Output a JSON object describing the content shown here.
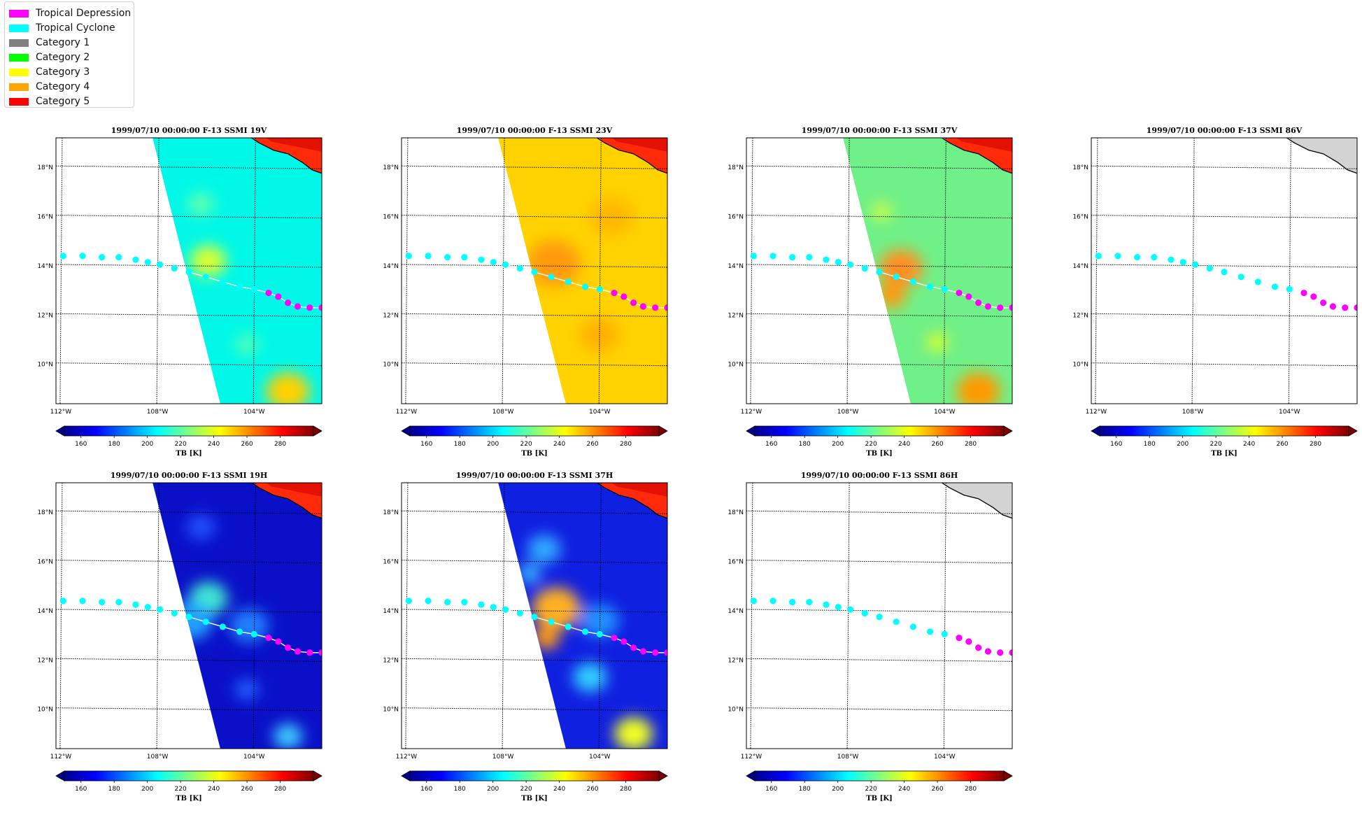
{
  "legend": [
    {
      "label": "Tropical Depression",
      "color": "#ff00ff"
    },
    {
      "label": "Tropical Cyclone",
      "color": "#00ffff"
    },
    {
      "label": "Category 1",
      "color": "#808080"
    },
    {
      "label": "Category 2",
      "color": "#00ff00"
    },
    {
      "label": "Category 3",
      "color": "#ffff00"
    },
    {
      "label": "Category 4",
      "color": "#ffa500"
    },
    {
      "label": "Category 5",
      "color": "#ff0000"
    }
  ],
  "lat_labels": [
    "18°N",
    "16°N",
    "14°N",
    "12°N",
    "10°N"
  ],
  "lon_labels": [
    "112°W",
    "108°W",
    "104°W"
  ],
  "colorbar": {
    "ticks": [
      "160",
      "180",
      "200",
      "220",
      "240",
      "260",
      "280"
    ],
    "label": "TB [K]",
    "colors": [
      "#00008f",
      "#0000ff",
      "#0080ff",
      "#00ffff",
      "#80ff80",
      "#ffff00",
      "#ff8000",
      "#ff0000",
      "#800000"
    ]
  },
  "track": {
    "points": [
      [
        -111.9,
        14.4
      ],
      [
        -111.1,
        14.4
      ],
      [
        -110.3,
        14.35
      ],
      [
        -109.6,
        14.35
      ],
      [
        -108.9,
        14.25
      ],
      [
        -108.4,
        14.15
      ],
      [
        -107.9,
        14.05
      ],
      [
        -107.3,
        13.9
      ],
      [
        -106.7,
        13.75
      ],
      [
        -106.0,
        13.55
      ],
      [
        -105.3,
        13.35
      ],
      [
        -104.6,
        13.15
      ],
      [
        -104.0,
        13.05
      ],
      [
        -103.4,
        12.9
      ],
      [
        -103.0,
        12.75
      ],
      [
        -102.6,
        12.5
      ],
      [
        -102.2,
        12.35
      ],
      [
        -101.7,
        12.3
      ],
      [
        -101.2,
        12.3
      ]
    ],
    "categories": [
      "TC",
      "TC",
      "TC",
      "TC",
      "TC",
      "TC",
      "TC",
      "TC",
      "TC",
      "TC",
      "TC",
      "TC",
      "TC",
      "TD",
      "TD",
      "TD",
      "TD",
      "TD",
      "TD"
    ]
  },
  "panels": [
    {
      "title": "1999/07/10 00:00:00  F-13 SSMI 19V",
      "channel": "19V",
      "base": "#00f8e8",
      "colorbar": true,
      "blobs": [
        {
          "lon": -105.9,
          "lat": 14.2,
          "color": "#d8ff30",
          "r": 0.75
        },
        {
          "lon": -102.6,
          "lat": 8.9,
          "color": "#ffd000",
          "r": 0.9
        },
        {
          "lon": -106.2,
          "lat": 16.5,
          "color": "#60ffb0",
          "r": 0.55
        },
        {
          "lon": -104.3,
          "lat": 10.8,
          "color": "#50ffb8",
          "r": 0.5
        }
      ]
    },
    {
      "title": "1999/07/10 00:00:00  F-13 SSMI 23V",
      "channel": "23V",
      "base": "#ffd200",
      "colorbar": true,
      "blobs": [
        {
          "lon": -105.9,
          "lat": 14.1,
          "color": "#ff9a10",
          "r": 1.1
        },
        {
          "lon": -104.0,
          "lat": 11.2,
          "color": "#ffb000",
          "r": 0.8
        },
        {
          "lon": -103.5,
          "lat": 16.0,
          "color": "#ffb800",
          "r": 0.9
        }
      ]
    },
    {
      "title": "1999/07/10 00:00:00  F-13 SSMI 37V",
      "channel": "37V",
      "base": "#70f088",
      "colorbar": true,
      "blobs": [
        {
          "lon": -105.8,
          "lat": 13.9,
          "color": "#ff9020",
          "r": 0.9
        },
        {
          "lon": -106.2,
          "lat": 12.8,
          "color": "#ff9a10",
          "r": 0.6
        },
        {
          "lon": -102.6,
          "lat": 8.9,
          "color": "#ff9a00",
          "r": 0.9
        },
        {
          "lon": -104.3,
          "lat": 10.9,
          "color": "#d8ff30",
          "r": 0.45
        },
        {
          "lon": -106.6,
          "lat": 16.2,
          "color": "#d8ff40",
          "r": 0.4
        }
      ]
    },
    {
      "title": "1999/07/10 00:00:00  F-13 SSMI 86V",
      "channel": "86V",
      "base": "",
      "colorbar": true,
      "blobs": []
    },
    {
      "title": "1999/07/10 00:00:00  F-13 SSMI 19H",
      "channel": "19H",
      "base": "#0a10c8",
      "colorbar": true,
      "blobs": [
        {
          "lon": -105.9,
          "lat": 14.5,
          "color": "#40e8d0",
          "r": 0.8
        },
        {
          "lon": -106.6,
          "lat": 13.6,
          "color": "#20a0ff",
          "r": 0.9
        },
        {
          "lon": -104.2,
          "lat": 13.4,
          "color": "#2080ff",
          "r": 0.8
        },
        {
          "lon": -102.6,
          "lat": 8.9,
          "color": "#40d0ff",
          "r": 0.6
        },
        {
          "lon": -106.2,
          "lat": 17.4,
          "color": "#2050ff",
          "r": 0.6
        },
        {
          "lon": -104.3,
          "lat": 10.8,
          "color": "#2060ff",
          "r": 0.5
        }
      ]
    },
    {
      "title": "1999/07/10 00:00:00  F-13 SSMI 37H",
      "channel": "37H",
      "base": "#1020e0",
      "colorbar": true,
      "blobs": [
        {
          "lon": -105.8,
          "lat": 14.1,
          "color": "#ffb020",
          "r": 1.0
        },
        {
          "lon": -106.2,
          "lat": 12.9,
          "color": "#ff9a10",
          "r": 0.55
        },
        {
          "lon": -104.4,
          "lat": 11.3,
          "color": "#30d0ff",
          "r": 0.7
        },
        {
          "lon": -102.6,
          "lat": 9.0,
          "color": "#f0ff20",
          "r": 0.8
        },
        {
          "lon": -106.3,
          "lat": 16.5,
          "color": "#30a8ff",
          "r": 0.7
        },
        {
          "lon": -104.0,
          "lat": 13.6,
          "color": "#2090ff",
          "r": 0.8
        },
        {
          "lon": -106.9,
          "lat": 15.5,
          "color": "#40c0ff",
          "r": 0.45
        }
      ]
    },
    {
      "title": "1999/07/10 00:00:00  F-13 SSMI 86H",
      "channel": "86H",
      "base": "",
      "colorbar": true,
      "blobs": []
    }
  ]
}
